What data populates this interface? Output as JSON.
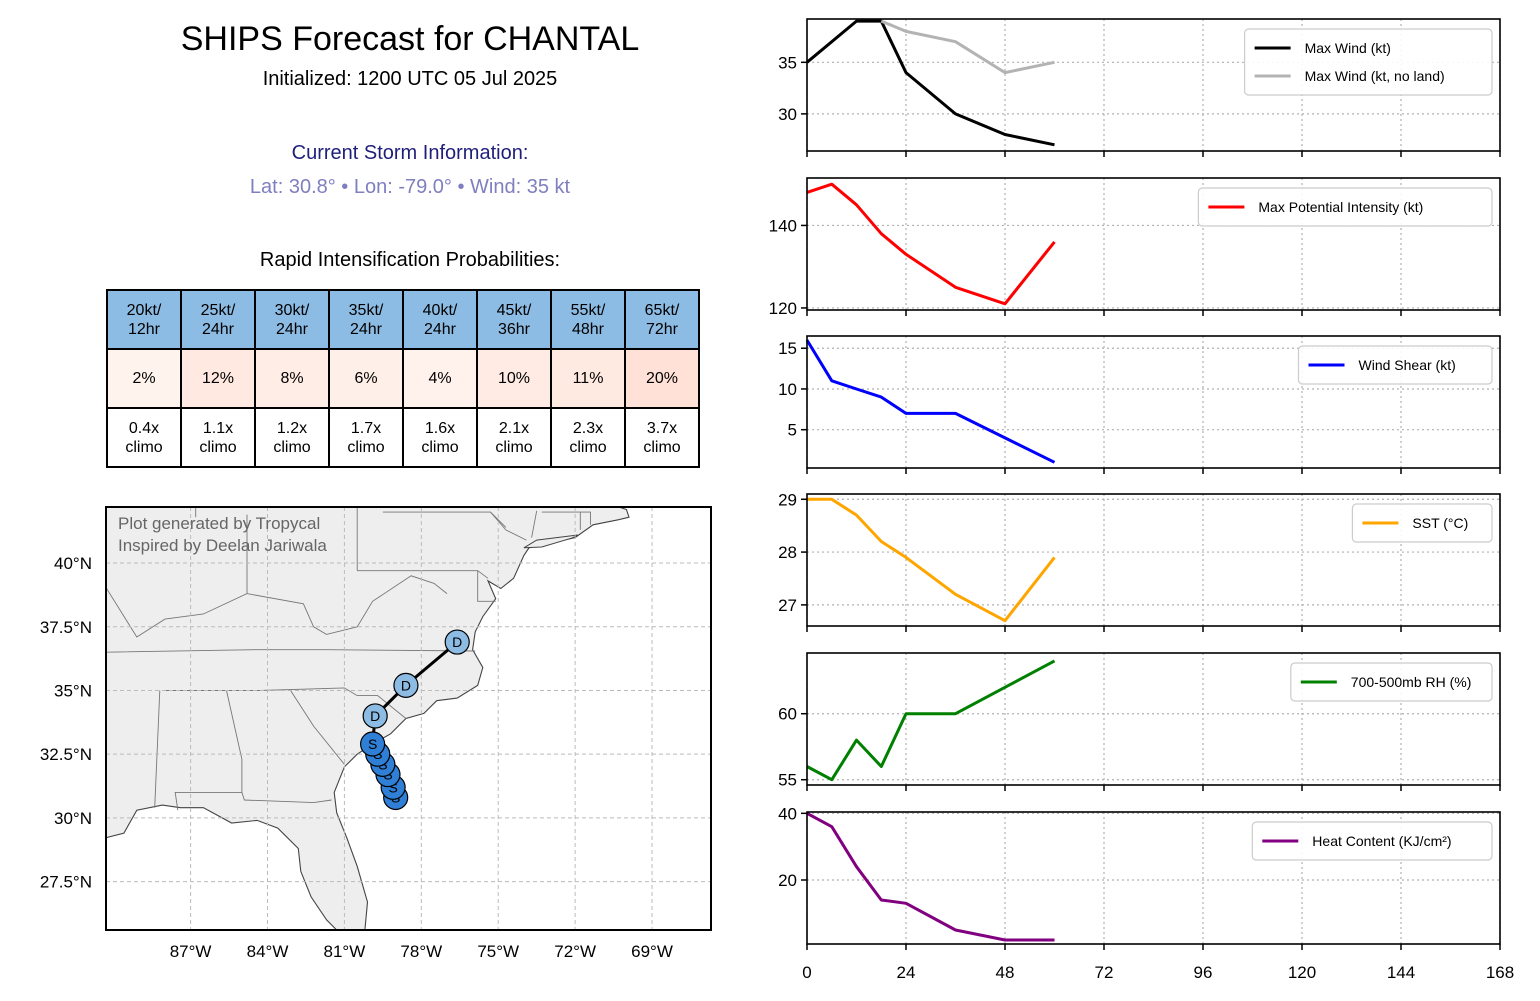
{
  "header": {
    "title": "SHIPS Forecast for CHANTAL",
    "initialized": "Initialized: 1200 UTC 05 Jul 2025",
    "current_heading": "Current Storm Information:",
    "current_values": "Lat: 30.8° • Lon: -79.0° • Wind: 35 kt",
    "ri_heading": "Rapid Intensification Probabilities:"
  },
  "ri_table": {
    "columns": [
      "20kt/\n12hr",
      "25kt/\n24hr",
      "30kt/\n24hr",
      "35kt/\n24hr",
      "40kt/\n24hr",
      "45kt/\n36hr",
      "55kt/\n48hr",
      "65kt/\n72hr"
    ],
    "probabilities": [
      "2%",
      "12%",
      "8%",
      "6%",
      "4%",
      "10%",
      "11%",
      "20%"
    ],
    "prob_values": [
      2,
      12,
      8,
      6,
      4,
      10,
      11,
      20
    ],
    "climo": [
      "0.4x\nclimo",
      "1.1x\nclimo",
      "1.2x\nclimo",
      "1.7x\nclimo",
      "1.6x\nclimo",
      "2.1x\nclimo",
      "2.3x\nclimo",
      "3.7x\nclimo"
    ],
    "header_color": "#8cbbe4"
  },
  "map": {
    "credit_1": "Plot generated by Tropycal",
    "credit_2": "Inspired by Deelan Jariwala",
    "lon_labels": [
      "87°W",
      "84°W",
      "81°W",
      "78°W",
      "75°W",
      "72°W",
      "69°W"
    ],
    "lon_values": [
      -87,
      -84,
      -81,
      -78,
      -75,
      -72,
      -69
    ],
    "lat_labels": [
      "40°N",
      "37.5°N",
      "35°N",
      "32.5°N",
      "30°N",
      "27.5°N"
    ],
    "lat_values": [
      40,
      37.5,
      35,
      32.5,
      30,
      27.5
    ],
    "lon_range": [
      -90.3,
      -66.7
    ],
    "lat_range": [
      25.6,
      42.2
    ],
    "track": [
      {
        "lat": 30.8,
        "lon": -79.0,
        "type": "S"
      },
      {
        "lat": 31.2,
        "lon": -79.1,
        "type": "S"
      },
      {
        "lat": 31.7,
        "lon": -79.3,
        "type": "S"
      },
      {
        "lat": 32.1,
        "lon": -79.5,
        "type": "S"
      },
      {
        "lat": 32.5,
        "lon": -79.7,
        "type": "S"
      },
      {
        "lat": 32.9,
        "lon": -79.9,
        "type": "S"
      },
      {
        "lat": 34.0,
        "lon": -79.8,
        "type": "D"
      },
      {
        "lat": 35.2,
        "lon": -78.6,
        "type": "D"
      },
      {
        "lat": 36.9,
        "lon": -76.6,
        "type": "D"
      }
    ],
    "subtropical_color": "#2f7fd6",
    "depression_color": "#8cbbe4",
    "land_color": "#eeeeee"
  },
  "chart_data": [
    {
      "type": "line",
      "xlim": [
        0,
        168
      ],
      "ylim": [
        26.4,
        39.2
      ],
      "yticks": [
        30,
        35
      ],
      "series": [
        {
          "name": "Max Wind (kt)",
          "color": "#000000",
          "x": [
            0,
            12,
            18,
            24,
            36,
            48,
            60
          ],
          "y": [
            35,
            39,
            39,
            34,
            30,
            28,
            27
          ]
        },
        {
          "name": "Max Wind (kt, no land)",
          "color": "#b3b3b3",
          "x": [
            18,
            24,
            36,
            48,
            60
          ],
          "y": [
            39,
            38,
            37,
            34,
            35
          ]
        }
      ]
    },
    {
      "type": "line",
      "xlim": [
        0,
        168
      ],
      "ylim": [
        119.5,
        151.5
      ],
      "yticks": [
        120,
        140
      ],
      "series": [
        {
          "name": "Max Potential Intensity (kt)",
          "color": "#ff0000",
          "x": [
            0,
            6,
            12,
            18,
            24,
            36,
            48,
            60
          ],
          "y": [
            148,
            150,
            145,
            138,
            133,
            125,
            121,
            136
          ]
        }
      ]
    },
    {
      "type": "line",
      "xlim": [
        0,
        168
      ],
      "ylim": [
        0.3,
        16.5
      ],
      "yticks": [
        5,
        10,
        15
      ],
      "series": [
        {
          "name": "Wind Shear (kt)",
          "color": "#0000ff",
          "x": [
            0,
            6,
            12,
            18,
            24,
            36,
            48,
            60
          ],
          "y": [
            16,
            11,
            10,
            9,
            7,
            7,
            4,
            1
          ]
        }
      ]
    },
    {
      "type": "line",
      "xlim": [
        0,
        168
      ],
      "ylim": [
        26.6,
        29.1
      ],
      "yticks": [
        27,
        28,
        29
      ],
      "series": [
        {
          "name": "SST (°C)",
          "color": "#ffa500",
          "x": [
            0,
            6,
            12,
            18,
            24,
            36,
            48,
            60
          ],
          "y": [
            29,
            29,
            28.7,
            28.2,
            27.9,
            27.2,
            26.7,
            27.9
          ]
        }
      ]
    },
    {
      "type": "line",
      "xlim": [
        0,
        168
      ],
      "ylim": [
        54.6,
        64.6
      ],
      "yticks": [
        55,
        60
      ],
      "series": [
        {
          "name": "700-500mb RH (%)",
          "color": "#008000",
          "x": [
            0,
            6,
            12,
            18,
            24,
            36,
            48,
            60
          ],
          "y": [
            56,
            55,
            58,
            56,
            60,
            60,
            62,
            64
          ]
        }
      ]
    },
    {
      "type": "line",
      "xlim": [
        0,
        168
      ],
      "ylim": [
        0.8,
        40.4
      ],
      "yticks": [
        20,
        40
      ],
      "series": [
        {
          "name": "Heat Content (KJ/cm²)",
          "color": "#800080",
          "x": [
            0,
            6,
            12,
            18,
            24,
            36,
            48,
            60
          ],
          "y": [
            40,
            36,
            24,
            14,
            13,
            5,
            2,
            2
          ]
        }
      ]
    }
  ],
  "shared_x": {
    "ticks": [
      0,
      24,
      48,
      72,
      96,
      120,
      144,
      168
    ]
  }
}
